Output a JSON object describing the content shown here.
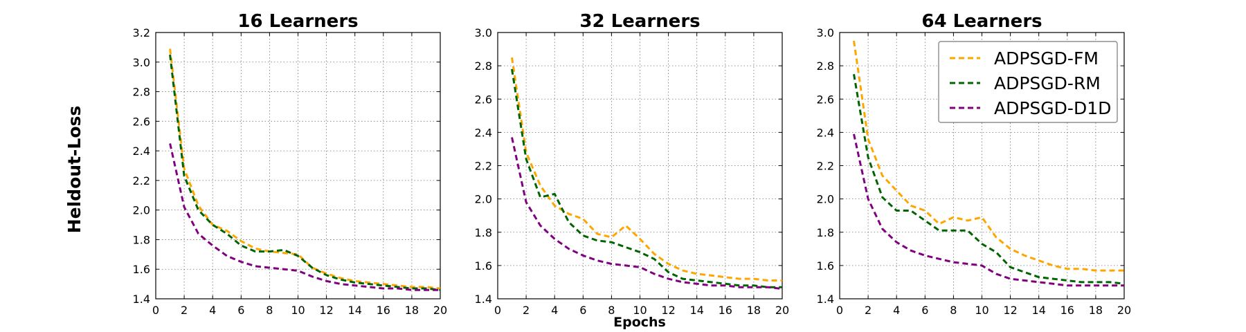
{
  "figure": {
    "ylabel": "Heldout-Loss",
    "xlabel": "Epochs"
  },
  "legend": [
    {
      "name": "ADPSGD-FM",
      "color": "#FFA500"
    },
    {
      "name": "ADPSGD-RM",
      "color": "#006400"
    },
    {
      "name": "ADPSGD-D1D",
      "color": "#800080"
    }
  ],
  "chart_data": [
    {
      "type": "line",
      "title": "16 Learners",
      "xlim": [
        0,
        20
      ],
      "ylim": [
        1.4,
        3.2
      ],
      "xticks": [
        "0",
        "2",
        "4",
        "6",
        "8",
        "10",
        "12",
        "14",
        "16",
        "18",
        "20"
      ],
      "yticks": [
        "1.4",
        "1.6",
        "1.8",
        "2.0",
        "2.2",
        "2.4",
        "2.6",
        "2.8",
        "3.0",
        "3.2"
      ],
      "grid": true,
      "x": [
        1,
        2,
        3,
        4,
        5,
        6,
        7,
        8,
        9,
        10,
        11,
        12,
        13,
        14,
        15,
        16,
        17,
        18,
        19,
        20
      ],
      "series": [
        {
          "name": "ADPSGD-FM",
          "values": [
            3.09,
            2.28,
            2.03,
            1.9,
            1.86,
            1.79,
            1.74,
            1.72,
            1.71,
            1.7,
            1.61,
            1.57,
            1.54,
            1.52,
            1.51,
            1.5,
            1.49,
            1.48,
            1.48,
            1.47
          ]
        },
        {
          "name": "ADPSGD-RM",
          "values": [
            3.05,
            2.23,
            2.0,
            1.9,
            1.84,
            1.76,
            1.72,
            1.72,
            1.73,
            1.69,
            1.61,
            1.56,
            1.53,
            1.51,
            1.5,
            1.49,
            1.48,
            1.47,
            1.47,
            1.46
          ]
        },
        {
          "name": "ADPSGD-D1D",
          "values": [
            2.45,
            2.02,
            1.84,
            1.76,
            1.69,
            1.65,
            1.62,
            1.61,
            1.6,
            1.59,
            1.55,
            1.52,
            1.5,
            1.49,
            1.48,
            1.47,
            1.47,
            1.46,
            1.46,
            1.46
          ]
        }
      ]
    },
    {
      "type": "line",
      "title": "32 Learners",
      "xlim": [
        0,
        20
      ],
      "ylim": [
        1.4,
        3.0
      ],
      "xticks": [
        "0",
        "2",
        "4",
        "6",
        "8",
        "10",
        "12",
        "14",
        "16",
        "18",
        "20"
      ],
      "yticks": [
        "1.4",
        "1.6",
        "1.8",
        "2.0",
        "2.2",
        "2.4",
        "2.6",
        "2.8",
        "3.0"
      ],
      "grid": true,
      "x": [
        1,
        2,
        3,
        4,
        5,
        6,
        7,
        8,
        9,
        10,
        11,
        12,
        13,
        14,
        15,
        16,
        17,
        18,
        19,
        20
      ],
      "series": [
        {
          "name": "ADPSGD-FM",
          "values": [
            2.85,
            2.28,
            2.08,
            1.96,
            1.91,
            1.88,
            1.79,
            1.77,
            1.84,
            1.76,
            1.67,
            1.61,
            1.57,
            1.55,
            1.54,
            1.53,
            1.52,
            1.52,
            1.51,
            1.51
          ]
        },
        {
          "name": "ADPSGD-RM",
          "values": [
            2.78,
            2.24,
            2.01,
            2.03,
            1.86,
            1.78,
            1.75,
            1.74,
            1.71,
            1.68,
            1.64,
            1.56,
            1.52,
            1.51,
            1.5,
            1.49,
            1.48,
            1.48,
            1.47,
            1.47
          ]
        },
        {
          "name": "ADPSGD-D1D",
          "values": [
            2.37,
            1.98,
            1.84,
            1.76,
            1.7,
            1.66,
            1.63,
            1.61,
            1.6,
            1.59,
            1.55,
            1.52,
            1.5,
            1.49,
            1.48,
            1.48,
            1.47,
            1.47,
            1.47,
            1.46
          ]
        }
      ]
    },
    {
      "type": "line",
      "title": "64 Learners",
      "xlim": [
        0,
        20
      ],
      "ylim": [
        1.4,
        3.0
      ],
      "xticks": [
        "0",
        "2",
        "4",
        "6",
        "8",
        "10",
        "12",
        "14",
        "16",
        "18",
        "20"
      ],
      "yticks": [
        "1.4",
        "1.6",
        "1.8",
        "2.0",
        "2.2",
        "2.4",
        "2.6",
        "2.8",
        "3.0"
      ],
      "grid": true,
      "legend_position": "top-right",
      "x": [
        1,
        2,
        3,
        4,
        5,
        6,
        7,
        8,
        9,
        10,
        11,
        12,
        13,
        14,
        15,
        16,
        17,
        18,
        19,
        20
      ],
      "series": [
        {
          "name": "ADPSGD-FM",
          "values": [
            2.95,
            2.36,
            2.14,
            2.05,
            1.96,
            1.93,
            1.85,
            1.89,
            1.87,
            1.89,
            1.77,
            1.7,
            1.66,
            1.63,
            1.6,
            1.58,
            1.58,
            1.57,
            1.57,
            1.57
          ]
        },
        {
          "name": "ADPSGD-RM",
          "values": [
            2.75,
            2.25,
            2.01,
            1.93,
            1.93,
            1.87,
            1.81,
            1.81,
            1.81,
            1.73,
            1.68,
            1.59,
            1.56,
            1.53,
            1.52,
            1.51,
            1.5,
            1.5,
            1.5,
            1.49
          ]
        },
        {
          "name": "ADPSGD-D1D",
          "values": [
            2.39,
            2.0,
            1.82,
            1.74,
            1.69,
            1.66,
            1.64,
            1.62,
            1.61,
            1.6,
            1.55,
            1.52,
            1.51,
            1.5,
            1.49,
            1.48,
            1.48,
            1.48,
            1.48,
            1.48
          ]
        }
      ]
    }
  ]
}
